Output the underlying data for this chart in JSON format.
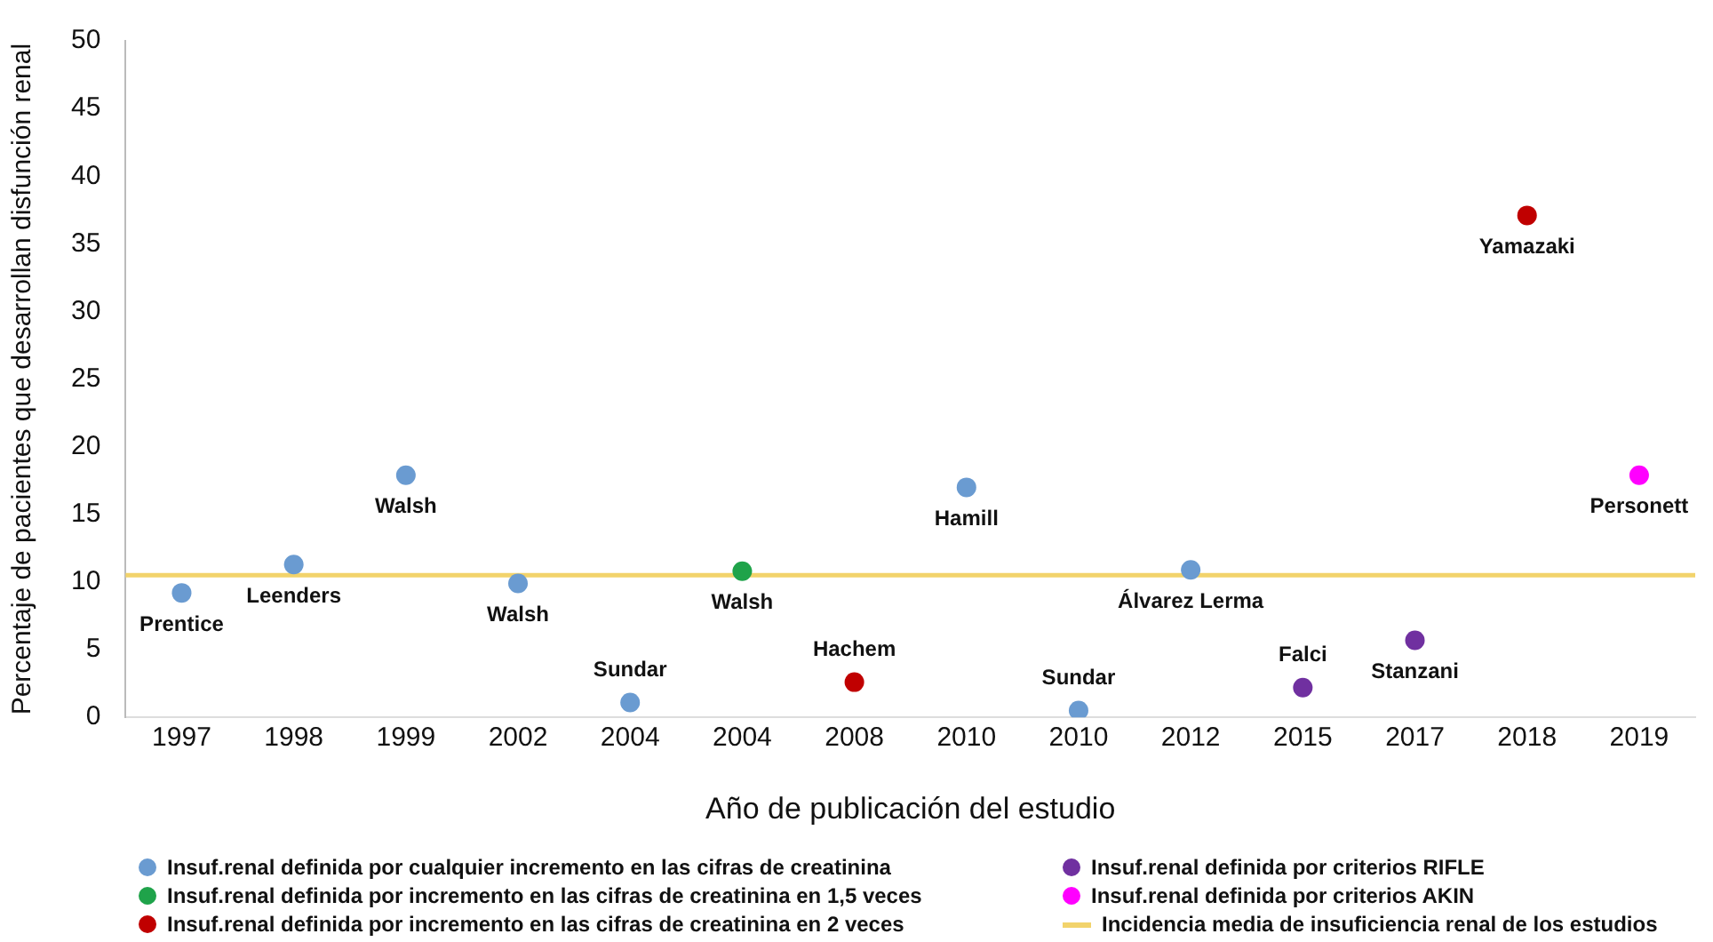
{
  "chart_data": {
    "type": "scatter",
    "xlabel": "Año de publicación del estudio",
    "ylabel": "Percentaje de pacientes que desarrollan disfunción renal",
    "categories": [
      "1997",
      "1998",
      "1999",
      "2002",
      "2004",
      "2004",
      "2008",
      "2010",
      "2010",
      "2012",
      "2015",
      "2017",
      "2018",
      "2019"
    ],
    "ylim": [
      0,
      50
    ],
    "yticks": [
      0,
      5,
      10,
      15,
      20,
      25,
      30,
      35,
      40,
      45,
      50
    ],
    "grid": false,
    "legend": "bottom",
    "marker": "circle",
    "series": [
      {
        "name": "Insuf.renal definida por cualquier incremento en las cifras de creatinina",
        "color": "#6a9bd1",
        "values": [
          9.2,
          11.3,
          17.9,
          9.9,
          1.1,
          null,
          null,
          17.0,
          0.5,
          10.9,
          null,
          null,
          null,
          null
        ],
        "value_labels": [
          "Prentice",
          "Leenders",
          "Walsh",
          "Walsh",
          "Sundar",
          null,
          null,
          "Hamill",
          "Sundar",
          "Álvarez Lerma",
          null,
          null,
          null,
          null
        ]
      },
      {
        "name": "Insuf.renal definida por incremento en las cifras de creatinina en 1,5 veces",
        "color": "#1fa34a",
        "values": [
          null,
          null,
          null,
          null,
          null,
          10.8,
          null,
          null,
          null,
          null,
          null,
          null,
          null,
          null
        ],
        "value_labels": [
          null,
          null,
          null,
          null,
          null,
          "Walsh",
          null,
          null,
          null,
          null,
          null,
          null,
          null,
          null
        ]
      },
      {
        "name": "Insuf.renal definida por incremento en las cifras de creatinina en 2 veces",
        "color": "#c00000",
        "values": [
          null,
          null,
          null,
          null,
          null,
          null,
          2.6,
          null,
          null,
          null,
          null,
          null,
          37.1,
          null
        ],
        "value_labels": [
          null,
          null,
          null,
          null,
          null,
          null,
          "Hachem",
          null,
          null,
          null,
          null,
          null,
          "Yamazaki",
          null
        ]
      },
      {
        "name": "Insuf.renal definida por criterios RIFLE",
        "color": "#7030a0",
        "values": [
          null,
          null,
          null,
          null,
          null,
          null,
          null,
          null,
          null,
          null,
          2.2,
          5.7,
          null,
          null
        ],
        "value_labels": [
          null,
          null,
          null,
          null,
          null,
          null,
          null,
          null,
          null,
          null,
          "Falci",
          "Stanzani",
          null,
          null
        ]
      },
      {
        "name": "Insuf.renal definida por criterios AKIN",
        "color": "#ff00ff",
        "values": [
          null,
          null,
          null,
          null,
          null,
          null,
          null,
          null,
          null,
          null,
          null,
          null,
          null,
          17.9
        ],
        "value_labels": [
          null,
          null,
          null,
          null,
          null,
          null,
          null,
          null,
          null,
          null,
          null,
          null,
          null,
          "Personett"
        ]
      }
    ],
    "ref_lines": [
      {
        "axis": "y",
        "value": 10.5,
        "label": "Incidencia media de insuficiencia renal de los estudios",
        "color": "#f2d36b"
      }
    ]
  }
}
